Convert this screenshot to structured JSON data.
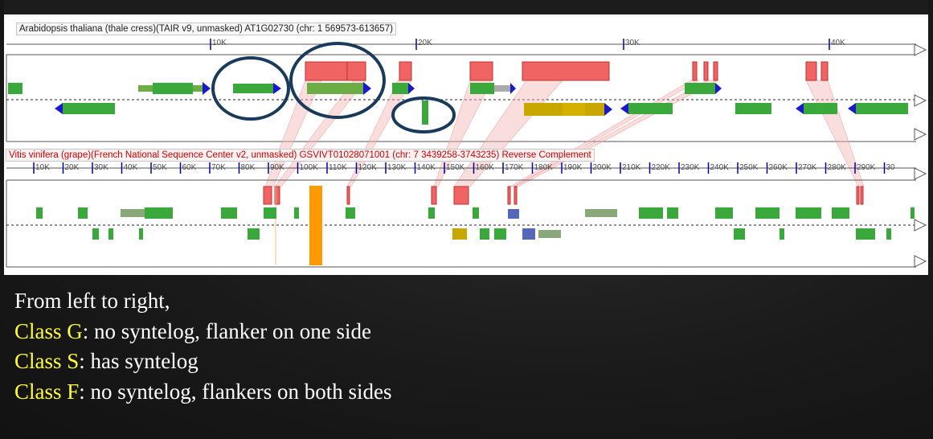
{
  "track1": {
    "title": "Arabidopsis thaliana (thale cress)(TAIR v9, unmasked) AT1G02730 (chr: 1 569573-613657)",
    "ruler": [
      "10K",
      "20K",
      "30K",
      "40K"
    ]
  },
  "track2": {
    "title": "Vitis vinifera (grape)(French National Sequence Center v2, unmasked) GSVIVT01028071001 (chr: 7 3439258-3743235) Reverse Complement",
    "ruler": [
      "10K",
      "20K",
      "30K",
      "40K",
      "50K",
      "60K",
      "70K",
      "80K",
      "90K",
      "100K",
      "110K",
      "120K",
      "130K",
      "140K",
      "150K",
      "160K",
      "170K",
      "180K",
      "190K",
      "200K",
      "210K",
      "220K",
      "230K",
      "240K",
      "250K",
      "260K",
      "270K",
      "280K",
      "290K",
      "30"
    ]
  },
  "caption": {
    "intro": "From left to right,",
    "lines": [
      {
        "cls": "Class G",
        "text": ": no syntelog, flanker on one side"
      },
      {
        "cls": "Class S",
        "text": ": has syntelog"
      },
      {
        "cls": "Class F",
        "text": ": no syntelog, flankers on both sides"
      }
    ]
  },
  "colors": {
    "syntenic": "#f06464",
    "gene": "#3aa83a",
    "strand": "#1a1acc",
    "highlight": "#ff9900",
    "circle": "#1a3a5c"
  }
}
